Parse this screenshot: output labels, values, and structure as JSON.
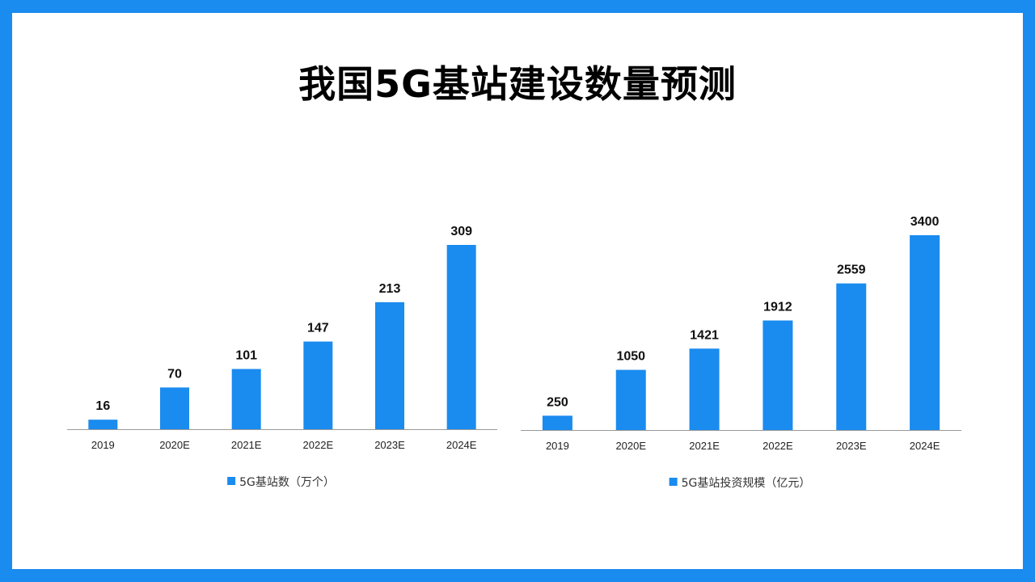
{
  "page": {
    "title": "我国5G基站建设数量预测",
    "frame_color": "#1a8bef",
    "background": "#ffffff"
  },
  "chart_data": [
    {
      "type": "bar",
      "categories": [
        "2019",
        "2020E",
        "2021E",
        "2022E",
        "2023E",
        "2024E"
      ],
      "series": [
        {
          "name": "5G基站数（万个）",
          "values": [
            16,
            70,
            101,
            147,
            213,
            309
          ],
          "color": "#1a8bef"
        }
      ],
      "ylim": [
        0,
        309
      ],
      "grid": false,
      "legend": "bottom-center"
    },
    {
      "type": "bar",
      "categories": [
        "2019",
        "2020E",
        "2021E",
        "2022E",
        "2023E",
        "2024E"
      ],
      "series": [
        {
          "name": "5G基站投资规模（亿元）",
          "values": [
            250,
            1050,
            1421,
            1912,
            2559,
            3400
          ],
          "color": "#1a8bef"
        }
      ],
      "ylim": [
        0,
        3400
      ],
      "grid": false,
      "legend": "bottom-center"
    }
  ]
}
